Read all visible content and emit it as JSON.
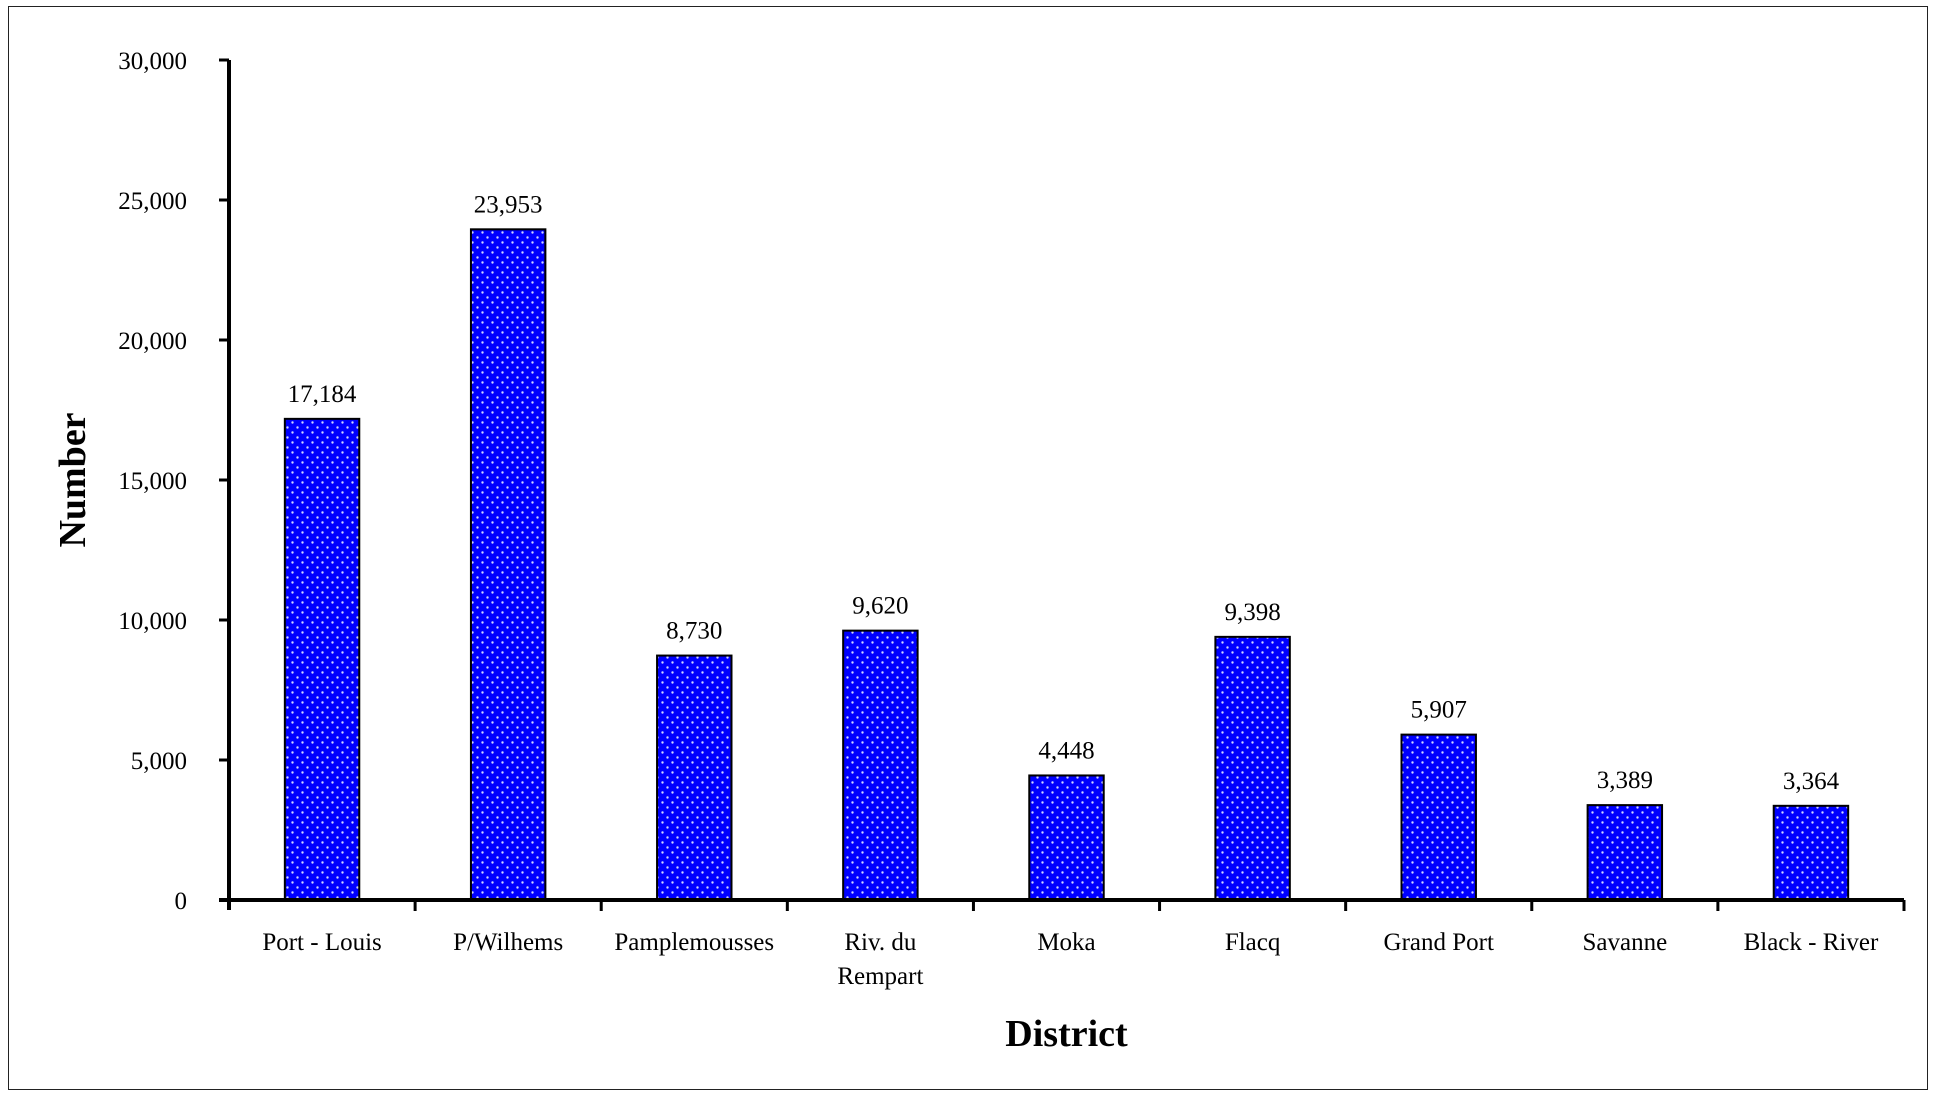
{
  "chart_data": {
    "type": "bar",
    "title": "",
    "xlabel": "District",
    "ylabel": "Number",
    "categories": [
      [
        "Port - Louis"
      ],
      [
        "P/Wilhems"
      ],
      [
        "Pamplemousses"
      ],
      [
        "Riv. du",
        "Rempart"
      ],
      [
        "Moka"
      ],
      [
        "Flacq"
      ],
      [
        "Grand Port"
      ],
      [
        "Savanne"
      ],
      [
        "Black - River"
      ]
    ],
    "values": [
      17184,
      23953,
      8730,
      9620,
      4448,
      9398,
      5907,
      3389,
      3364
    ],
    "data_labels": [
      "17,184",
      "23,953",
      "8,730",
      "9,620",
      "4,448",
      "9,398",
      "5,907",
      "3,389",
      "3,364"
    ],
    "y_ticks": [
      0,
      5000,
      10000,
      15000,
      20000,
      25000,
      30000
    ],
    "y_tick_labels": [
      "0",
      "5,000",
      "10,000",
      "15,000",
      "20,000",
      "25,000",
      "30,000"
    ],
    "ylim": [
      0,
      30000
    ],
    "grid": false,
    "legend": "none",
    "bar_color": "#0000FF",
    "bar_pattern": "small white dots"
  }
}
